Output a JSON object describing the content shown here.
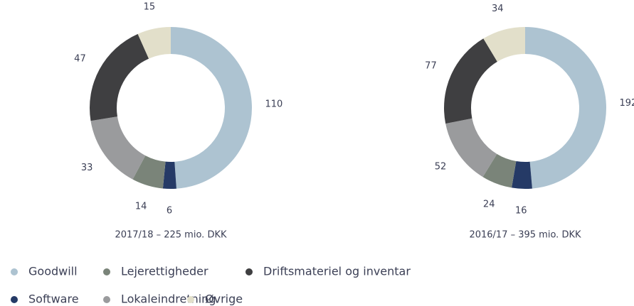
{
  "chart_data": [
    {
      "type": "pie",
      "title": "2017/18 – 225 mio. DKK",
      "categories": [
        "Goodwill",
        "Software",
        "Lejerettigheder",
        "Lokaleindretning",
        "Driftsmateriel og inventar",
        "Øvrige"
      ],
      "values": [
        110,
        6,
        14,
        33,
        47,
        15
      ],
      "colors": [
        "#adc3d1",
        "#253a66",
        "#7a8479",
        "#9a9b9d",
        "#3f3f41",
        "#e2dfca"
      ]
    },
    {
      "type": "pie",
      "title": "2016/17 – 395 mio. DKK",
      "categories": [
        "Goodwill",
        "Software",
        "Lejerettigheder",
        "Lokaleindretning",
        "Driftsmateriel og inventar",
        "Øvrige"
      ],
      "values": [
        192,
        16,
        24,
        52,
        77,
        34
      ],
      "colors": [
        "#adc3d1",
        "#253a66",
        "#7a8479",
        "#9a9b9d",
        "#3f3f41",
        "#e2dfca"
      ]
    }
  ]
}
